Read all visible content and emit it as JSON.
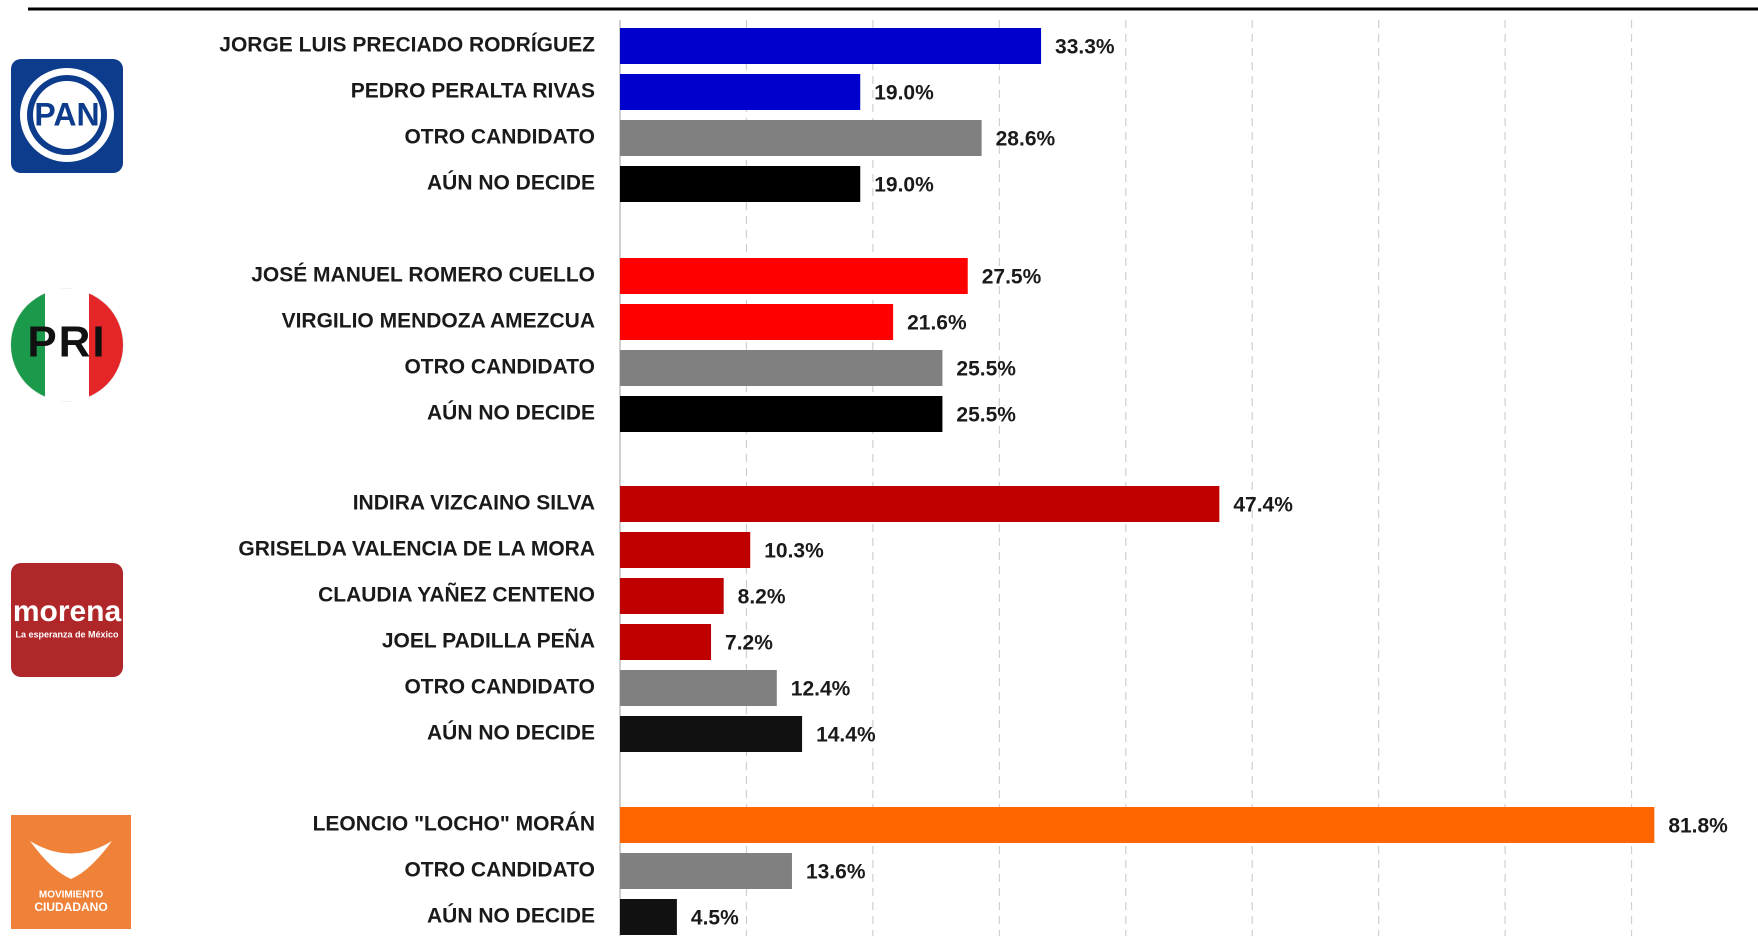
{
  "chart_data": {
    "type": "bar",
    "xlim": [
      0,
      90
    ],
    "xticks": [
      10,
      20,
      30,
      40,
      50,
      60,
      70,
      80
    ],
    "grid": true,
    "groups": [
      {
        "logo": [
          "PAN"
        ],
        "logo_color": "#0d3c8c",
        "categories": [
          "JORGE LUIS PRECIADO RODRÍGUEZ",
          "PEDRO PERALTA RIVAS",
          "OTRO CANDIDATO",
          "AÚN NO DECIDE"
        ],
        "values": [
          33.3,
          19.0,
          28.6,
          19.0
        ],
        "value_labels": [
          "33.3%",
          "19.0%",
          "28.6%",
          "19.0%"
        ],
        "colors": [
          "#0000cc",
          "#0000cc",
          "#808080",
          "#000000"
        ]
      },
      {
        "logo": [
          "PRI"
        ],
        "logo_color": "#e52629",
        "categories": [
          "JOSÉ MANUEL ROMERO CUELLO",
          "VIRGILIO MENDOZA AMEZCUA",
          "OTRO CANDIDATO",
          "AÚN NO DECIDE"
        ],
        "values": [
          27.5,
          21.6,
          25.5,
          25.5
        ],
        "value_labels": [
          "27.5%",
          "21.6%",
          "25.5%",
          "25.5%"
        ],
        "colors": [
          "#ff0000",
          "#ff0000",
          "#808080",
          "#000000"
        ]
      },
      {
        "logo": [
          "morena",
          "La esperanza de México"
        ],
        "logo_color": "#b0272a",
        "categories": [
          "INDIRA VIZCAINO SILVA",
          "GRISELDA VALENCIA DE LA MORA",
          "CLAUDIA YAÑEZ CENTENO",
          "JOEL PADILLA PEÑA",
          "OTRO CANDIDATO",
          "AÚN NO DECIDE"
        ],
        "values": [
          47.4,
          10.3,
          8.2,
          7.2,
          12.4,
          14.4
        ],
        "value_labels": [
          "47.4%",
          "10.3%",
          "8.2%",
          "7.2%",
          "12.4%",
          "14.4%"
        ],
        "colors": [
          "#c00000",
          "#c00000",
          "#c00000",
          "#c00000",
          "#808080",
          "#111111"
        ]
      },
      {
        "logo": [
          "MOVIMIENTO",
          "CIUDADANO"
        ],
        "logo_color": "#f08138",
        "categories": [
          "LEONCIO \"LOCHO\" MORÁN",
          "OTRO CANDIDATO",
          "AÚN NO DECIDE"
        ],
        "values": [
          81.8,
          13.6,
          4.5
        ],
        "value_labels": [
          "81.8%",
          "13.6%",
          "4.5%"
        ],
        "colors": [
          "#ff6600",
          "#808080",
          "#111111"
        ]
      }
    ]
  }
}
